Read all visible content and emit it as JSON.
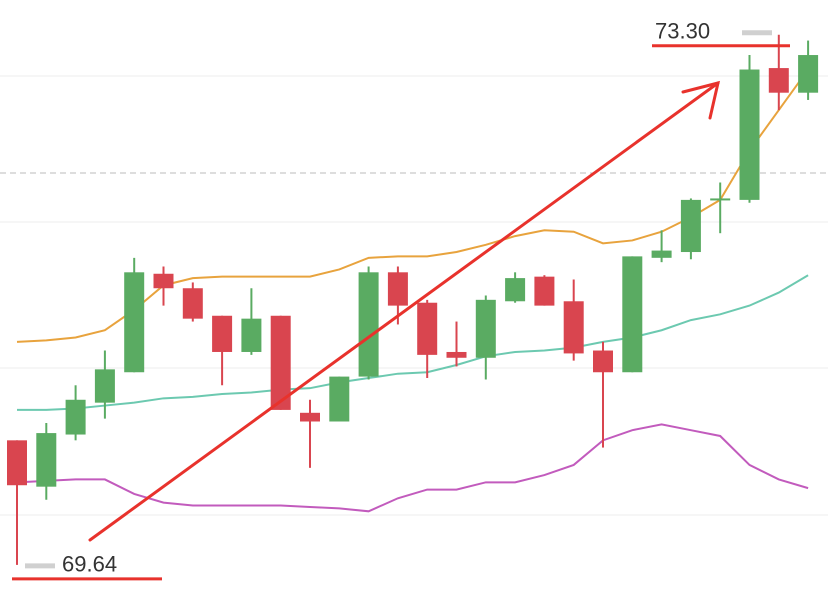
{
  "chart_data": {
    "type": "candlestick",
    "ylim": [
      69.37,
      73.54
    ],
    "up_color": "#5aab62",
    "down_color": "#d9454f",
    "open": [
      70.5,
      70.18,
      70.54,
      70.76,
      70.97,
      71.65,
      71.55,
      71.36,
      71.11,
      71.36,
      70.69,
      70.63,
      70.94,
      71.66,
      71.45,
      71.11,
      71.07,
      71.46,
      71.63,
      71.46,
      71.12,
      70.97,
      71.76,
      71.8,
      72.16,
      72.16,
      73.07,
      72.9
    ],
    "high": [
      70.5,
      70.62,
      70.88,
      71.12,
      71.76,
      71.7,
      71.59,
      71.36,
      71.55,
      71.36,
      70.78,
      70.94,
      71.7,
      71.7,
      71.47,
      71.32,
      71.5,
      71.66,
      71.64,
      71.61,
      71.18,
      71.77,
      71.95,
      72.17,
      72.28,
      73.16,
      73.3,
      73.26
    ],
    "low": [
      69.64,
      70.09,
      70.5,
      70.65,
      70.97,
      71.43,
      71.32,
      70.88,
      71.09,
      70.71,
      70.31,
      70.63,
      70.92,
      71.3,
      70.93,
      71.01,
      70.92,
      71.45,
      71.43,
      71.05,
      70.45,
      70.97,
      71.73,
      71.75,
      71.93,
      72.14,
      72.78,
      72.85
    ],
    "close": [
      70.19,
      70.55,
      70.78,
      70.99,
      71.66,
      71.55,
      71.34,
      71.11,
      71.34,
      70.71,
      70.63,
      70.94,
      71.66,
      71.43,
      71.09,
      71.07,
      71.47,
      71.62,
      71.43,
      71.1,
      70.97,
      71.77,
      71.81,
      72.16,
      72.17,
      73.06,
      72.9,
      73.16
    ],
    "series": [
      {
        "color": "#e8a33d",
        "values": [
          71.18,
          71.19,
          71.21,
          71.26,
          71.4,
          71.57,
          71.62,
          71.63,
          71.63,
          71.63,
          71.63,
          71.68,
          71.76,
          71.77,
          71.77,
          71.8,
          71.85,
          71.91,
          71.95,
          71.94,
          71.86,
          71.88,
          71.94,
          72.04,
          72.16,
          72.5,
          72.78,
          73.06
        ]
      },
      {
        "color": "#6cc9b0",
        "values": [
          70.71,
          70.71,
          70.72,
          70.74,
          70.76,
          70.79,
          70.8,
          70.82,
          70.83,
          70.85,
          70.86,
          70.9,
          70.93,
          70.96,
          70.97,
          71.02,
          71.08,
          71.11,
          71.12,
          71.14,
          71.18,
          71.21,
          71.26,
          71.33,
          71.37,
          71.43,
          71.52,
          71.64
        ]
      },
      {
        "color": "#c25bbd",
        "values": [
          70.21,
          70.22,
          70.23,
          70.23,
          70.13,
          70.07,
          70.05,
          70.05,
          70.05,
          70.05,
          70.04,
          70.03,
          70.01,
          70.1,
          70.16,
          70.16,
          70.21,
          70.21,
          70.26,
          70.33,
          70.5,
          70.57,
          70.61,
          70.57,
          70.53,
          70.33,
          70.23,
          70.17
        ]
      }
    ],
    "annotations": [
      {
        "value": 73.3,
        "label": "73.30"
      },
      {
        "value": 69.64,
        "label": "69.64"
      }
    ]
  }
}
